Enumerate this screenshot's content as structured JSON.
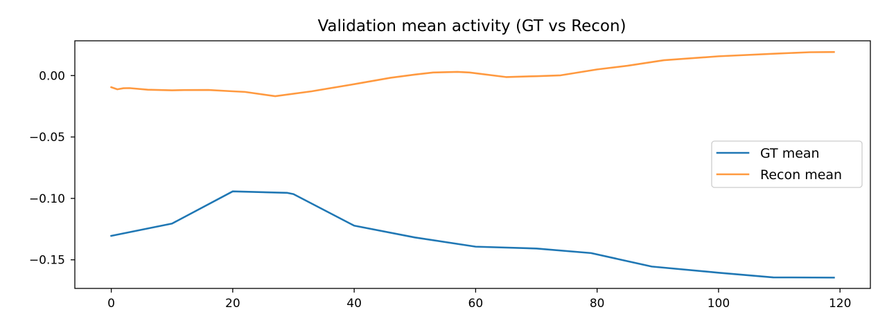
{
  "chart_data": {
    "type": "line",
    "title": "Validation mean activity (GT vs Recon)",
    "xlabel": "",
    "ylabel": "",
    "xlim": [
      -6,
      125
    ],
    "ylim": [
      -0.1733,
      0.0283
    ],
    "x_ticks": [
      0,
      20,
      40,
      60,
      80,
      100,
      120
    ],
    "x_tick_labels": [
      "0",
      "20",
      "40",
      "60",
      "80",
      "100",
      "120"
    ],
    "y_ticks": [
      0.0,
      -0.05,
      -0.1,
      -0.15
    ],
    "y_tick_labels": [
      "0.00",
      "−0.05",
      "−0.10",
      "−0.15"
    ],
    "grid": false,
    "legend_position": "center-right",
    "series": [
      {
        "name": "GT mean",
        "color": "#1f77b4",
        "points": [
          [
            0,
            -0.1305
          ],
          [
            10,
            -0.1205
          ],
          [
            20,
            -0.0943
          ],
          [
            29,
            -0.0955
          ],
          [
            30,
            -0.0965
          ],
          [
            40,
            -0.1222
          ],
          [
            50,
            -0.1318
          ],
          [
            60,
            -0.1393
          ],
          [
            70,
            -0.1408
          ],
          [
            79,
            -0.1445
          ],
          [
            89,
            -0.1555
          ],
          [
            100,
            -0.1605
          ],
          [
            109,
            -0.1643
          ],
          [
            119,
            -0.1645
          ]
        ]
      },
      {
        "name": "Recon mean",
        "color": "#ff993f",
        "points": [
          [
            0,
            -0.0095
          ],
          [
            1,
            -0.0112
          ],
          [
            2,
            -0.0103
          ],
          [
            3,
            -0.0102
          ],
          [
            6,
            -0.0115
          ],
          [
            10,
            -0.012
          ],
          [
            12,
            -0.0118
          ],
          [
            16,
            -0.0117
          ],
          [
            20,
            -0.0128
          ],
          [
            22,
            -0.0133
          ],
          [
            27,
            -0.0168
          ],
          [
            33,
            -0.0128
          ],
          [
            40,
            -0.007
          ],
          [
            46,
            -0.0018
          ],
          [
            50,
            0.0008
          ],
          [
            53,
            0.0025
          ],
          [
            57,
            0.003
          ],
          [
            59,
            0.0025
          ],
          [
            65,
            -0.0012
          ],
          [
            70,
            -0.0005
          ],
          [
            74,
            0.0002
          ],
          [
            80,
            0.005
          ],
          [
            85,
            0.008
          ],
          [
            91,
            0.0125
          ],
          [
            100,
            0.0157
          ],
          [
            110,
            0.018
          ],
          [
            115,
            0.019
          ],
          [
            119,
            0.0192
          ]
        ]
      }
    ]
  }
}
